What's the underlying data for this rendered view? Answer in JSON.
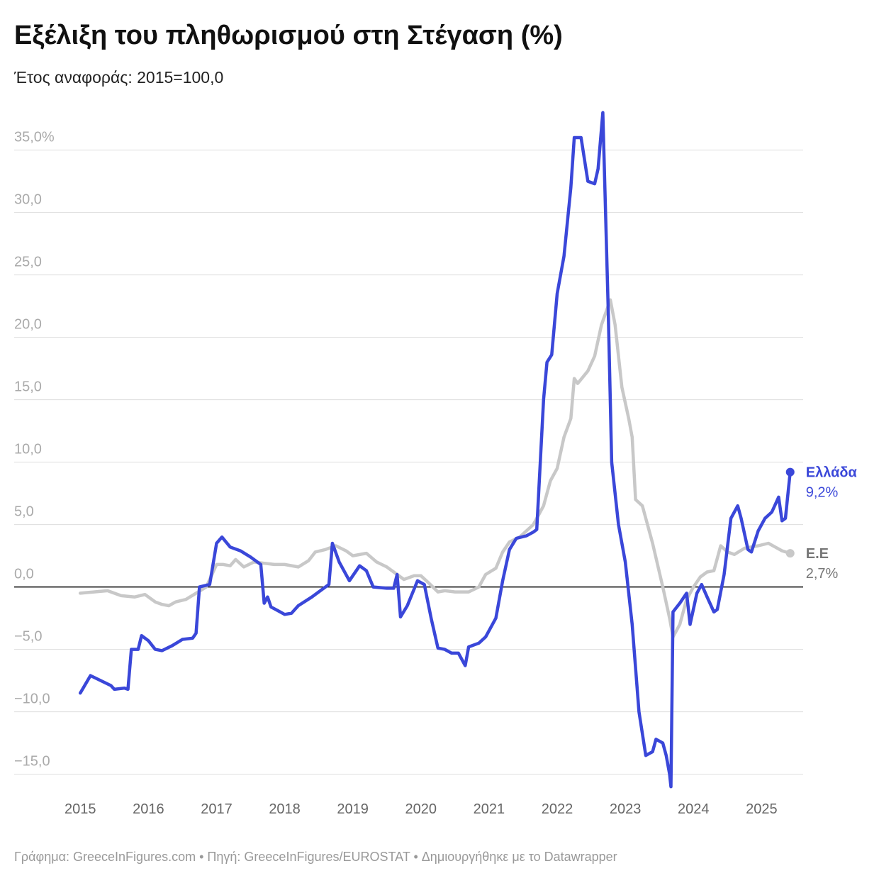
{
  "chart_data": {
    "type": "line",
    "title": "Εξέλιξη του πληθωρισμού στη Στέγαση (%)",
    "subtitle": "Έτος αναφοράς: 2015=100,0",
    "footer": "Γράφημα: GreeceInFigures.com • Πηγή: GreeceInFigures/EUROSTAT • Δημιουργήθηκε με το Datawrapper",
    "xlim": [
      2014.03,
      2025.61
    ],
    "xticks": [
      2015,
      2016,
      2017,
      2018,
      2019,
      2020,
      2021,
      2022,
      2023,
      2024,
      2025
    ],
    "ylim": [
      -16.5,
      38.5
    ],
    "yticks": [
      {
        "value": -15,
        "label": "−15,0"
      },
      {
        "value": -10,
        "label": "−10,0"
      },
      {
        "value": -5,
        "label": "−5,0"
      },
      {
        "value": 0,
        "label": "0,0"
      },
      {
        "value": 5,
        "label": "5,0"
      },
      {
        "value": 10,
        "label": "10,0"
      },
      {
        "value": 15,
        "label": "15,0"
      },
      {
        "value": 20,
        "label": "20,0"
      },
      {
        "value": 25,
        "label": "25,0"
      },
      {
        "value": 30,
        "label": "30,0"
      },
      {
        "value": 35,
        "label": "35,0%"
      }
    ],
    "grid": true,
    "series": [
      {
        "name": "Ε.Ε",
        "color": "#c8c8c8",
        "label_color": "#777777",
        "end_label": "2,7%",
        "x": [
          2015.0,
          2015.2,
          2015.4,
          2015.6,
          2015.8,
          2015.95,
          2016.1,
          2016.2,
          2016.3,
          2016.4,
          2016.55,
          2016.7,
          2016.85,
          2017.0,
          2017.1,
          2017.2,
          2017.28,
          2017.4,
          2017.55,
          2017.7,
          2017.85,
          2018.0,
          2018.2,
          2018.35,
          2018.45,
          2018.6,
          2018.75,
          2018.9,
          2019.0,
          2019.2,
          2019.35,
          2019.5,
          2019.65,
          2019.75,
          2019.9,
          2020.0,
          2020.1,
          2020.25,
          2020.35,
          2020.5,
          2020.7,
          2020.85,
          2020.95,
          2021.1,
          2021.2,
          2021.3,
          2021.45,
          2021.55,
          2021.65,
          2021.8,
          2021.9,
          2022.0,
          2022.1,
          2022.2,
          2022.25,
          2022.3,
          2022.45,
          2022.55,
          2022.65,
          2022.78,
          2022.85,
          2022.95,
          2023.05,
          2023.1,
          2023.15,
          2023.25,
          2023.4,
          2023.55,
          2023.65,
          2023.7,
          2023.8,
          2023.9,
          2024.0,
          2024.1,
          2024.2,
          2024.3,
          2024.4,
          2024.5,
          2024.6,
          2024.75,
          2024.95,
          2025.1,
          2025.2,
          2025.3,
          2025.42
        ],
        "values": [
          -0.5,
          -0.4,
          -0.3,
          -0.7,
          -0.8,
          -0.6,
          -1.2,
          -1.4,
          -1.5,
          -1.2,
          -1.0,
          -0.5,
          0.0,
          1.8,
          1.8,
          1.7,
          2.2,
          1.6,
          2.0,
          1.9,
          1.8,
          1.8,
          1.6,
          2.1,
          2.8,
          3.0,
          3.3,
          2.9,
          2.5,
          2.7,
          2.0,
          1.6,
          1.0,
          0.6,
          0.9,
          0.9,
          0.4,
          -0.4,
          -0.3,
          -0.4,
          -0.4,
          0.0,
          1.0,
          1.5,
          2.8,
          3.6,
          4.0,
          4.5,
          5.0,
          6.5,
          8.5,
          9.5,
          12.0,
          13.5,
          16.7,
          16.3,
          17.3,
          18.5,
          21.0,
          23.0,
          21.0,
          16.0,
          13.5,
          12.0,
          7.0,
          6.5,
          3.5,
          0.0,
          -2.5,
          -4.0,
          -3.0,
          -1.0,
          0.0,
          0.8,
          1.2,
          1.3,
          3.3,
          2.8,
          2.6,
          3.1,
          3.3,
          3.5,
          3.2,
          2.9,
          2.7
        ]
      },
      {
        "name": "Ελλάδα",
        "color": "#3a47d9",
        "label_color": "#3a47d9",
        "end_label": "9,2%",
        "x": [
          2015.0,
          2015.15,
          2015.3,
          2015.45,
          2015.5,
          2015.65,
          2015.7,
          2015.75,
          2015.85,
          2015.9,
          2016.0,
          2016.1,
          2016.2,
          2016.35,
          2016.5,
          2016.65,
          2016.7,
          2016.75,
          2016.9,
          2017.0,
          2017.08,
          2017.2,
          2017.35,
          2017.5,
          2017.65,
          2017.7,
          2017.75,
          2017.8,
          2017.9,
          2018.0,
          2018.1,
          2018.2,
          2018.4,
          2018.55,
          2018.65,
          2018.7,
          2018.8,
          2018.95,
          2019.1,
          2019.2,
          2019.3,
          2019.5,
          2019.6,
          2019.65,
          2019.7,
          2019.8,
          2019.95,
          2020.05,
          2020.15,
          2020.25,
          2020.35,
          2020.45,
          2020.55,
          2020.65,
          2020.7,
          2020.85,
          2020.95,
          2021.1,
          2021.2,
          2021.3,
          2021.4,
          2021.55,
          2021.65,
          2021.7,
          2021.8,
          2021.85,
          2021.92,
          2022.0,
          2022.1,
          2022.2,
          2022.25,
          2022.35,
          2022.45,
          2022.55,
          2022.6,
          2022.67,
          2022.75,
          2022.8,
          2022.9,
          2023.0,
          2023.1,
          2023.2,
          2023.3,
          2023.4,
          2023.45,
          2023.55,
          2023.6,
          2023.65,
          2023.67,
          2023.7,
          2023.8,
          2023.9,
          2023.95,
          2024.05,
          2024.12,
          2024.2,
          2024.3,
          2024.35,
          2024.45,
          2024.55,
          2024.65,
          2024.7,
          2024.8,
          2024.85,
          2024.95,
          2025.05,
          2025.15,
          2025.25,
          2025.3,
          2025.35,
          2025.42
        ],
        "values": [
          -8.5,
          -7.1,
          -7.5,
          -7.9,
          -8.2,
          -8.1,
          -8.2,
          -5.0,
          -5.0,
          -3.9,
          -4.3,
          -5.0,
          -5.1,
          -4.7,
          -4.2,
          -4.1,
          -3.7,
          0.0,
          0.2,
          3.5,
          4.0,
          3.2,
          2.9,
          2.4,
          1.8,
          -1.3,
          -0.8,
          -1.6,
          -1.9,
          -2.2,
          -2.1,
          -1.5,
          -0.8,
          -0.2,
          0.2,
          3.5,
          2.0,
          0.5,
          1.7,
          1.3,
          0.0,
          -0.1,
          -0.1,
          1.0,
          -2.4,
          -1.5,
          0.5,
          0.2,
          -2.5,
          -4.9,
          -5.0,
          -5.3,
          -5.3,
          -6.3,
          -4.8,
          -4.5,
          -4.0,
          -2.5,
          0.5,
          3.0,
          3.9,
          4.1,
          4.4,
          4.6,
          15.0,
          18.0,
          18.6,
          23.5,
          26.5,
          32.0,
          36.0,
          36.0,
          32.5,
          32.3,
          33.5,
          38.0,
          22.0,
          10.0,
          5.0,
          2.0,
          -3.0,
          -10.0,
          -13.5,
          -13.2,
          -12.2,
          -12.5,
          -13.5,
          -15.0,
          -16.0,
          -2.0,
          -1.3,
          -0.5,
          -3.0,
          -0.5,
          0.2,
          -0.8,
          -2.0,
          -1.8,
          1.0,
          5.5,
          6.5,
          5.5,
          3.0,
          2.8,
          4.5,
          5.5,
          6.0,
          7.2,
          5.3,
          5.5,
          9.2
        ]
      }
    ]
  }
}
